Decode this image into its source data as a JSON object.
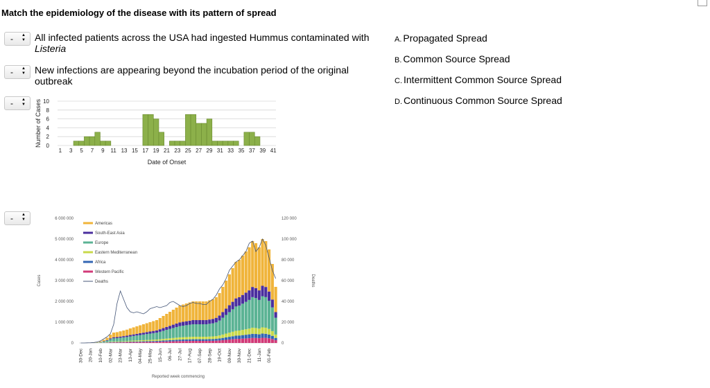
{
  "question": {
    "title": "Match the epidemiology of the disease with its pattern of spread"
  },
  "selects": [
    {
      "value": "-"
    },
    {
      "value": "-"
    },
    {
      "value": "-"
    },
    {
      "value": "-"
    }
  ],
  "items": [
    {
      "text_main": "All infected patients across the USA had ingested Hummus contaminated with",
      "text_italic": "Listeria"
    },
    {
      "text_line1": "New infections are appearing beyond the incubation period of the original",
      "text_line2": "outbreak"
    }
  ],
  "options": [
    {
      "letter": "A.",
      "label": "Propagated Spread"
    },
    {
      "letter": "B.",
      "label": "Common Source Spread"
    },
    {
      "letter": "C.",
      "label": "Intermittent Common Source Spread"
    },
    {
      "letter": "D.",
      "label": "Continuous Common Source Spread"
    }
  ],
  "chart_data": [
    {
      "type": "bar",
      "title": "",
      "xlabel": "Date of Onset",
      "ylabel": "Number of Cases",
      "ylim": [
        0,
        10
      ],
      "yticks": [
        "0",
        "2",
        "4",
        "6",
        "8",
        "10"
      ],
      "xtick_labels": [
        "1",
        "3",
        "5",
        "7",
        "9",
        "11",
        "13",
        "15",
        "17",
        "19",
        "21",
        "23",
        "25",
        "27",
        "29",
        "31",
        "33",
        "35",
        "37",
        "39",
        "41"
      ],
      "x": [
        1,
        2,
        3,
        4,
        5,
        6,
        7,
        8,
        9,
        10,
        11,
        12,
        13,
        14,
        15,
        16,
        17,
        18,
        19,
        20,
        21,
        22,
        23,
        24,
        25,
        26,
        27,
        28,
        29,
        30,
        31,
        32,
        33,
        34,
        35,
        36,
        37,
        38,
        39,
        40,
        41
      ],
      "values": [
        0,
        0,
        0,
        1,
        1,
        2,
        2,
        3,
        1,
        1,
        0,
        0,
        0,
        0,
        0,
        0,
        7,
        7,
        6,
        3,
        0,
        1,
        1,
        1,
        7,
        7,
        5,
        5,
        6,
        1,
        1,
        1,
        1,
        1,
        0,
        3,
        3,
        2,
        0,
        0,
        0
      ],
      "color": "#8cb04a"
    },
    {
      "type": "bar",
      "stacked": true,
      "xlabel": "Reported week commencing",
      "ylabel": "Cases",
      "y2label": "Deaths",
      "ylim": [
        0,
        6000000
      ],
      "y2lim": [
        0,
        120000
      ],
      "yticks": [
        "0",
        "1 000 000",
        "2 000 000",
        "3 000 000",
        "4 000 000",
        "5 000 000",
        "6 000 000"
      ],
      "y2ticks": [
        "0",
        "20 000",
        "40 000",
        "60 000",
        "80 000",
        "100 000",
        "120 000"
      ],
      "xtick_labels": [
        "30-Dec",
        "20-Jan",
        "10-Feb",
        "02-Mar",
        "23-Mar",
        "13-Apr",
        "04-May",
        "25-May",
        "15-Jun",
        "06-Jul",
        "27-Jul",
        "17-Aug",
        "07-Sep",
        "28-Sep",
        "19-Oct",
        "09-Nov",
        "30-Nov",
        "21-Dec",
        "11-Jan",
        "01-Feb"
      ],
      "legend": [
        "Americas",
        "South-East Asia",
        "Europe",
        "Eastern Mediterranean",
        "Africa",
        "Western Pacific",
        "Deaths"
      ],
      "colors": {
        "Americas": "#f0b43a",
        "South-East Asia": "#4a2e9e",
        "Europe": "#5bb394",
        "Eastern Mediterranean": "#c9d94a",
        "Africa": "#3366b3",
        "Western Pacific": "#d23a78",
        "Deaths": "#445577"
      },
      "series_total": [
        0,
        0,
        5000,
        10000,
        20000,
        40000,
        80000,
        150000,
        250000,
        400000,
        500000,
        520000,
        560000,
        600000,
        640000,
        700000,
        750000,
        800000,
        850000,
        900000,
        950000,
        1000000,
        1050000,
        1100000,
        1200000,
        1300000,
        1400000,
        1500000,
        1600000,
        1700000,
        1800000,
        1850000,
        1900000,
        1950000,
        2000000,
        2000000,
        2000000,
        2000000,
        2000000,
        2050000,
        2100000,
        2200000,
        2400000,
        2700000,
        3000000,
        3300000,
        3600000,
        3900000,
        4000000,
        4200000,
        4400000,
        4600000,
        4900000,
        4800000,
        4600000,
        5000000,
        4900000,
        4500000,
        3800000,
        2700000
      ],
      "deaths": [
        0,
        0,
        100,
        200,
        500,
        1000,
        2000,
        4000,
        6000,
        9000,
        18000,
        38000,
        50000,
        42000,
        34000,
        30000,
        29000,
        30000,
        29000,
        28000,
        30000,
        33000,
        34000,
        35000,
        34000,
        35000,
        36000,
        39000,
        40000,
        38000,
        36000,
        35000,
        36000,
        38000,
        39000,
        38000,
        38000,
        37000,
        37000,
        40000,
        42000,
        46000,
        52000,
        56000,
        62000,
        70000,
        74000,
        78000,
        80000,
        84000,
        88000,
        96000,
        98000,
        88000,
        92000,
        100000,
        94000,
        82000,
        70000,
        62000
      ],
      "shares": {
        "Americas": [
          0.45,
          0.45,
          0.45,
          0.45,
          0.45,
          0.45,
          0.45,
          0.45,
          0.45,
          0.45,
          0.45,
          0.45,
          0.45,
          0.45,
          0.45,
          0.45,
          0.45,
          0.45,
          0.45,
          0.45,
          0.45,
          0.45,
          0.45,
          0.45,
          0.45,
          0.45,
          0.45,
          0.45,
          0.45,
          0.45,
          0.45,
          0.45,
          0.45,
          0.45,
          0.45,
          0.45,
          0.45,
          0.45,
          0.45,
          0.45,
          0.45,
          0.45,
          0.45,
          0.45,
          0.45,
          0.45,
          0.45,
          0.45,
          0.45,
          0.45,
          0.45,
          0.45,
          0.45,
          0.45,
          0.45,
          0.45,
          0.45,
          0.45,
          0.45,
          0.45
        ],
        "South-East Asia": [
          0.1,
          0.1,
          0.1,
          0.1,
          0.1,
          0.1,
          0.1,
          0.1,
          0.1,
          0.1,
          0.1,
          0.1,
          0.1,
          0.1,
          0.1,
          0.1,
          0.1,
          0.1,
          0.1,
          0.1,
          0.1,
          0.1,
          0.1,
          0.1,
          0.1,
          0.1,
          0.1,
          0.1,
          0.1,
          0.1,
          0.1,
          0.1,
          0.1,
          0.1,
          0.1,
          0.1,
          0.1,
          0.1,
          0.1,
          0.1,
          0.1,
          0.1,
          0.1,
          0.1,
          0.1,
          0.1,
          0.1,
          0.1,
          0.1,
          0.1,
          0.1,
          0.1,
          0.1,
          0.1,
          0.1,
          0.1,
          0.1,
          0.1,
          0.1,
          0.1
        ],
        "Europe": [
          0.3,
          0.3,
          0.3,
          0.3,
          0.3,
          0.3,
          0.3,
          0.3,
          0.3,
          0.3,
          0.3,
          0.3,
          0.3,
          0.3,
          0.3,
          0.3,
          0.3,
          0.3,
          0.3,
          0.3,
          0.3,
          0.3,
          0.3,
          0.3,
          0.3,
          0.3,
          0.3,
          0.3,
          0.3,
          0.3,
          0.3,
          0.3,
          0.3,
          0.3,
          0.3,
          0.3,
          0.3,
          0.3,
          0.3,
          0.3,
          0.3,
          0.3,
          0.3,
          0.3,
          0.3,
          0.3,
          0.3,
          0.3,
          0.3,
          0.3,
          0.3,
          0.3,
          0.3,
          0.3,
          0.3,
          0.3,
          0.3,
          0.3,
          0.3,
          0.3
        ],
        "Eastern Mediterranean": [
          0.06,
          0.06,
          0.06,
          0.06,
          0.06,
          0.06,
          0.06,
          0.06,
          0.06,
          0.06,
          0.06,
          0.06,
          0.06,
          0.06,
          0.06,
          0.06,
          0.06,
          0.06,
          0.06,
          0.06,
          0.06,
          0.06,
          0.06,
          0.06,
          0.06,
          0.06,
          0.06,
          0.06,
          0.06,
          0.06,
          0.06,
          0.06,
          0.06,
          0.06,
          0.06,
          0.06,
          0.06,
          0.06,
          0.06,
          0.06,
          0.06,
          0.06,
          0.06,
          0.06,
          0.06,
          0.06,
          0.06,
          0.06,
          0.06,
          0.06,
          0.06,
          0.06,
          0.06,
          0.06,
          0.06,
          0.06,
          0.06,
          0.06,
          0.06,
          0.06
        ],
        "Africa": [
          0.04,
          0.04,
          0.04,
          0.04,
          0.04,
          0.04,
          0.04,
          0.04,
          0.04,
          0.04,
          0.04,
          0.04,
          0.04,
          0.04,
          0.04,
          0.04,
          0.04,
          0.04,
          0.04,
          0.04,
          0.04,
          0.04,
          0.04,
          0.04,
          0.04,
          0.04,
          0.04,
          0.04,
          0.04,
          0.04,
          0.04,
          0.04,
          0.04,
          0.04,
          0.04,
          0.04,
          0.04,
          0.04,
          0.04,
          0.04,
          0.04,
          0.04,
          0.04,
          0.04,
          0.04,
          0.04,
          0.04,
          0.04,
          0.04,
          0.04,
          0.04,
          0.04,
          0.04,
          0.04,
          0.04,
          0.04,
          0.04,
          0.04,
          0.04,
          0.04
        ],
        "Western Pacific": [
          0.05,
          0.05,
          0.05,
          0.05,
          0.05,
          0.05,
          0.05,
          0.05,
          0.05,
          0.05,
          0.05,
          0.05,
          0.05,
          0.05,
          0.05,
          0.05,
          0.05,
          0.05,
          0.05,
          0.05,
          0.05,
          0.05,
          0.05,
          0.05,
          0.05,
          0.05,
          0.05,
          0.05,
          0.05,
          0.05,
          0.05,
          0.05,
          0.05,
          0.05,
          0.05,
          0.05,
          0.05,
          0.05,
          0.05,
          0.05,
          0.05,
          0.05,
          0.05,
          0.05,
          0.05,
          0.05,
          0.05,
          0.05,
          0.05,
          0.05,
          0.05,
          0.05,
          0.05,
          0.05,
          0.05,
          0.05,
          0.05,
          0.05,
          0.05,
          0.05
        ]
      }
    }
  ]
}
